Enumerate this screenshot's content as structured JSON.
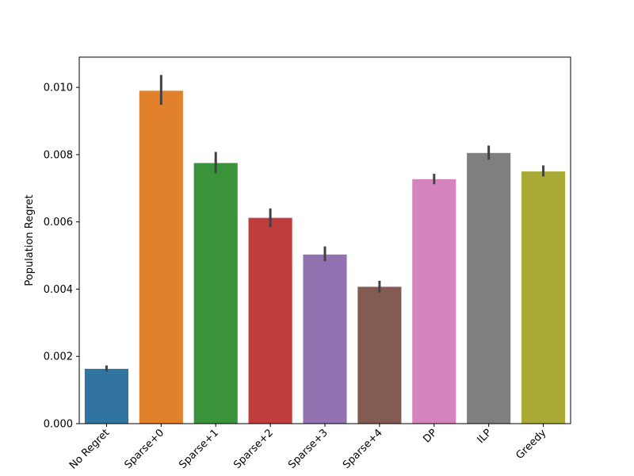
{
  "chart_data": {
    "type": "bar",
    "title": "",
    "xlabel": "",
    "ylabel": "Population Regret",
    "ylim": [
      0,
      0.0109
    ],
    "yticks": [
      "0.000",
      "0.002",
      "0.004",
      "0.006",
      "0.008",
      "0.010"
    ],
    "ytick_values": [
      0.0,
      0.002,
      0.004,
      0.006,
      0.008,
      0.01
    ],
    "grid": false,
    "categories": [
      "No Regret",
      "Sparse+0",
      "Sparse+1",
      "Sparse+2",
      "Sparse+3",
      "Sparse+4",
      "DP",
      "ILP",
      "Greedy"
    ],
    "values": [
      0.00163,
      0.0099,
      0.00775,
      0.00612,
      0.00503,
      0.00407,
      0.00727,
      0.00805,
      0.0075
    ],
    "error_low": [
      0.00155,
      0.00948,
      0.00745,
      0.00585,
      0.00483,
      0.0039,
      0.00712,
      0.00785,
      0.00735
    ],
    "error_high": [
      0.00173,
      0.01037,
      0.00808,
      0.0064,
      0.00527,
      0.00425,
      0.00743,
      0.00827,
      0.00768
    ],
    "colors": [
      "#3274a1",
      "#e1812c",
      "#3a923a",
      "#c03d3e",
      "#9372b2",
      "#845b53",
      "#d684bd",
      "#7f7f7f",
      "#a9aa35"
    ],
    "error_color": "#424242"
  }
}
